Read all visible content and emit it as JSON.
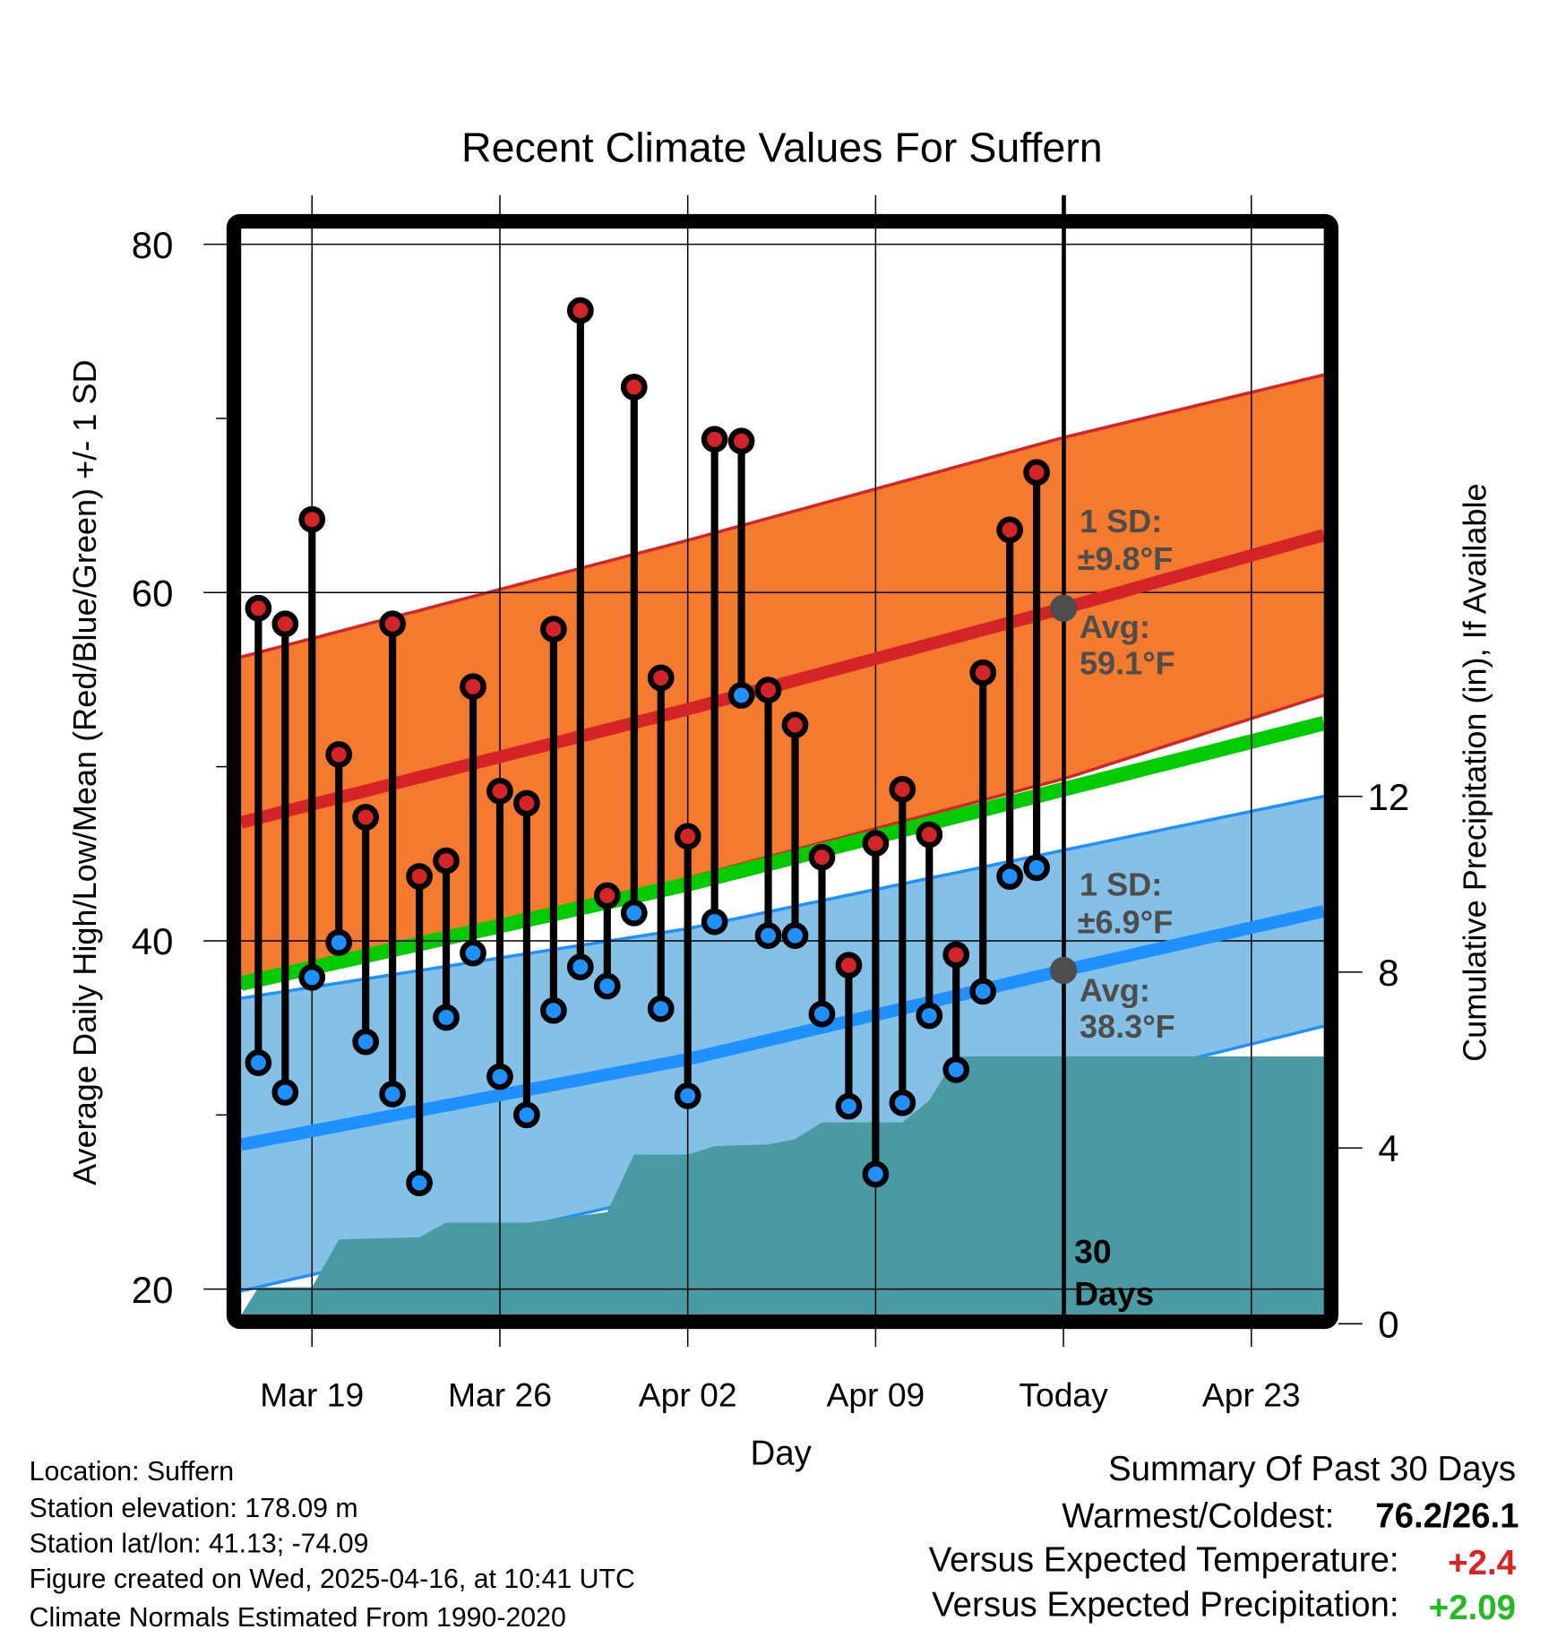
{
  "chart_data": {
    "type": "line",
    "title": "Recent Climate Values For Suffern",
    "xlabel": "Day",
    "ylabel": "Average Daily High/Low/Mean (Red/Blue/Green) +/- 1 SD",
    "y2label": "Cumulative Precipitation (in), If Available",
    "day_units": "days relative to today (Apr 16)",
    "xlim": [
      -30.64,
      9.7
    ],
    "ylim": [
      18.55,
      80.9
    ],
    "y2lim": [
      0,
      14.8
    ],
    "grid": true,
    "y_ticks": [
      "80",
      "60",
      "40",
      "20"
    ],
    "y_tick_values": [
      80,
      60,
      40,
      20
    ],
    "y_minor_ticks": [
      70,
      50,
      30
    ],
    "y2_ticks": [
      "0",
      "4",
      "8",
      "12"
    ],
    "y2_tick_values": [
      0,
      4,
      8,
      12
    ],
    "x_ticks": [
      {
        "label": "Mar 19",
        "day": -28
      },
      {
        "label": "Mar 26",
        "day": -21
      },
      {
        "label": "Apr 02",
        "day": -14
      },
      {
        "label": "Apr 09",
        "day": -7
      },
      {
        "label": "Today",
        "day": 0
      },
      {
        "label": "Apr 23",
        "day": 7
      }
    ],
    "daily": {
      "days": [
        -30,
        -29,
        -28,
        -27,
        -26,
        -25,
        -24,
        -23,
        -22,
        -21,
        -20,
        -19,
        -18,
        -17,
        -16,
        -15,
        -14,
        -13,
        -12,
        -11,
        -10,
        -9,
        -8,
        -7,
        -6,
        -5,
        -4,
        -3,
        -2,
        -1
      ],
      "high": [
        59.1,
        58.2,
        64.2,
        50.7,
        47.1,
        58.2,
        43.7,
        44.6,
        54.6,
        48.6,
        47.9,
        57.9,
        76.2,
        42.6,
        71.8,
        55.1,
        46.0,
        68.8,
        68.7,
        54.4,
        52.4,
        44.8,
        38.6,
        45.6,
        48.7,
        46.1,
        39.2,
        55.4,
        63.6,
        66.9
      ],
      "low": [
        33.0,
        31.3,
        37.9,
        39.9,
        34.2,
        31.2,
        26.1,
        35.6,
        39.3,
        32.2,
        30.0,
        36.0,
        38.5,
        37.4,
        41.6,
        36.1,
        31.1,
        41.1,
        54.1,
        40.3,
        40.3,
        35.8,
        30.5,
        26.6,
        30.7,
        35.7,
        32.6,
        37.1,
        43.7,
        44.2
      ]
    },
    "normals": {
      "days": [
        -30.64,
        -14,
        0,
        9.7
      ],
      "high_mean": [
        46.8,
        53.3,
        59.1,
        63.3
      ],
      "high_sd": [
        9.5,
        9.7,
        9.8,
        9.2
      ],
      "low_mean": [
        28.3,
        33.2,
        38.3,
        41.7
      ],
      "low_sd": [
        8.4,
        7.5,
        6.9,
        6.6
      ]
    },
    "precip_cumulative": {
      "days": [
        -30.64,
        -30,
        -28,
        -27,
        -24,
        -23,
        -20,
        -17,
        -16,
        -14,
        -13,
        -11,
        -10,
        -9,
        -6,
        -5,
        -4,
        9.7
      ],
      "inches": [
        0.2,
        0.83,
        0.83,
        1.92,
        1.97,
        2.3,
        2.3,
        2.54,
        3.85,
        3.85,
        4.04,
        4.08,
        4.2,
        4.58,
        4.58,
        5.08,
        6.08,
        6.08
      ]
    },
    "annotations": {
      "high_sd_label": "1 SD:",
      "high_sd_value": "±9.8°F",
      "high_avg_label": "Avg:",
      "high_avg_value": "59.1°F",
      "high_avg_today": 59.1,
      "low_sd_label": "1 SD:",
      "low_sd_value": "±6.9°F",
      "low_avg_label": "Avg:",
      "low_avg_value": "38.3°F",
      "low_avg_today": 38.3,
      "window_number": "30",
      "window_unit": "Days"
    },
    "colors": {
      "high_band": "#f47a2e",
      "high_line": "#d42428",
      "low_band": "#85c1e6",
      "low_line": "#1e90ff",
      "mean_line": "#00cc00",
      "precip": "#4a9aa3",
      "avg_marker": "#4d4d4d"
    }
  },
  "footer": {
    "location": "Location: Suffern",
    "elevation": "Station elevation: 178.09 m",
    "latlon": "Station lat/lon: 41.13; -74.09",
    "created": "Figure created on Wed, 2025-04-16, at 10:41 UTC",
    "normals": "Climate Normals Estimated From 1990-2020"
  },
  "summary": {
    "title": "Summary Of Past 30 Days",
    "warmest_coldest_label": "Warmest/Coldest:",
    "warmest_coldest_value": "76.2/26.1",
    "temp_label": "Versus Expected Temperature:",
    "temp_value": "+2.4",
    "temp_color": "#dd2222",
    "precip_label": "Versus Expected Precipitation:",
    "precip_value": "+2.09",
    "precip_color": "#22bb22"
  }
}
